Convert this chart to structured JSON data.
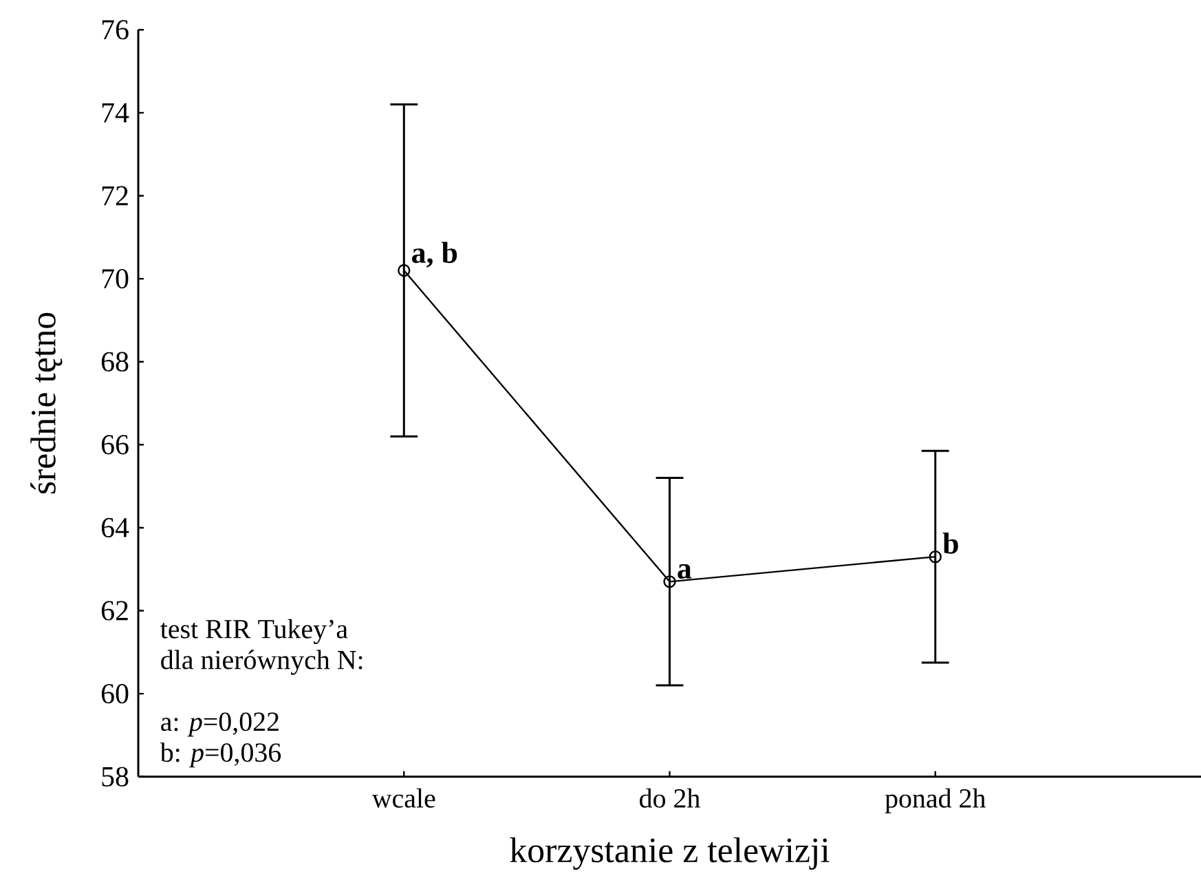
{
  "chart_data": {
    "type": "line",
    "xlabel": "korzystanie z telewizji",
    "ylabel": "średnie tętno",
    "categories": [
      "wcale",
      "do 2h",
      "ponad 2h"
    ],
    "series": [
      {
        "color": "#000000",
        "values": [
          70.2,
          62.7,
          63.3
        ],
        "errors": [
          4.0,
          2.5,
          2.55
        ]
      }
    ],
    "ylim": [
      58,
      76
    ],
    "yticks": [
      58,
      60,
      62,
      64,
      66,
      68,
      70,
      72,
      74,
      76
    ],
    "marker": "circle",
    "line_style": "solid",
    "grid": false,
    "annotations": [
      {
        "text": "a, b",
        "x": "wcale",
        "y": 70.2
      },
      {
        "text": "a",
        "x": "do 2h",
        "y": 62.7
      },
      {
        "text": "b",
        "x": "ponad 2h",
        "y": 63.3
      },
      "test RIR Tukey’a",
      "dla nierównych N:",
      "a: *p*=0,022",
      "b: *p*=0,036"
    ]
  }
}
